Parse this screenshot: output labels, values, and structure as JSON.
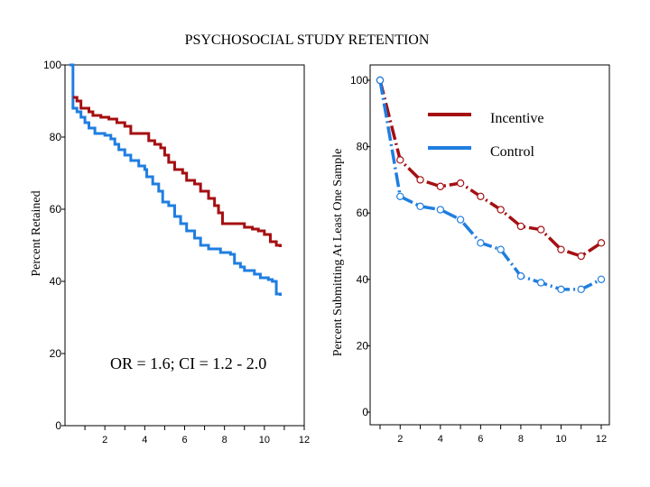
{
  "title": "PSYCHOSOCIAL STUDY RETENTION",
  "colors": {
    "incentive": "#a50f12",
    "control": "#1f7ee0"
  },
  "chart_data": [
    {
      "type": "line",
      "step": true,
      "ylabel": "Percent Retained",
      "xlim": [
        0,
        12
      ],
      "ylim": [
        0,
        100
      ],
      "xticks": [
        1,
        2,
        3,
        4,
        5,
        6,
        7,
        8,
        9,
        10,
        11,
        12
      ],
      "xtick_labels": [
        "2",
        "4",
        "6",
        "8",
        "10",
        "12"
      ],
      "xtick_label_values": [
        2,
        4,
        6,
        8,
        10,
        12
      ],
      "yticks": [
        0,
        20,
        40,
        60,
        80,
        100
      ],
      "ytick_labels": [
        "0",
        "20",
        "40",
        "60",
        "80",
        "100"
      ],
      "annotation": "OR = 1.6; CI = 1.2 - 2.0",
      "grid": false,
      "series": [
        {
          "key": "incentive",
          "x": [
            0.4,
            0.6,
            0.8,
            1.2,
            1.4,
            1.8,
            2.2,
            2.6,
            3.0,
            3.3,
            4.0,
            4.2,
            4.5,
            4.8,
            5.0,
            5.2,
            5.5,
            5.9,
            6.1,
            6.5,
            6.8,
            7.2,
            7.5,
            7.7,
            7.9,
            8.8,
            9.0,
            9.4,
            9.7,
            10.0,
            10.3,
            10.6,
            10.8
          ],
          "y": [
            91,
            90,
            88,
            87,
            86,
            85.5,
            85,
            84,
            83,
            81,
            81,
            79,
            78,
            77,
            75,
            73,
            71,
            70,
            68,
            67,
            65,
            63,
            61,
            59,
            56,
            56,
            55,
            54.5,
            54,
            53,
            51,
            50,
            49.5
          ]
        },
        {
          "key": "control",
          "x": [
            0,
            0.4,
            0.6,
            0.8,
            1.0,
            1.2,
            1.5,
            2.0,
            2.3,
            2.5,
            2.7,
            3.0,
            3.3,
            3.7,
            4.0,
            4.1,
            4.4,
            4.7,
            4.9,
            5.2,
            5.5,
            5.8,
            6.1,
            6.5,
            6.8,
            7.2,
            7.8,
            8.3,
            8.5,
            8.8,
            9.0,
            9.5,
            9.8,
            10.2,
            10.4,
            10.6,
            10.8
          ],
          "y": [
            100,
            88,
            87,
            85.5,
            84,
            82.5,
            81,
            80.5,
            79.5,
            78,
            76.5,
            75,
            73.5,
            72,
            71,
            69,
            67,
            65,
            62,
            61,
            58,
            56,
            54,
            52,
            50,
            49,
            48,
            47.5,
            45,
            44,
            43,
            42,
            41,
            40.5,
            40,
            36.5,
            36
          ]
        }
      ]
    },
    {
      "type": "line",
      "ylabel": "Percent Submitting At Least One Sample",
      "xlim": [
        0.5,
        12.5
      ],
      "ylim": [
        0,
        100
      ],
      "xticks": [
        1,
        2,
        3,
        4,
        5,
        6,
        7,
        8,
        9,
        10,
        11,
        12
      ],
      "xtick_labels": [
        "2",
        "4",
        "6",
        "8",
        "10",
        "12"
      ],
      "xtick_label_values": [
        2,
        4,
        6,
        8,
        10,
        12
      ],
      "yticks": [
        0,
        20,
        40,
        60,
        80,
        100
      ],
      "ytick_labels": [
        "0",
        "20",
        "40",
        "60",
        "80",
        "100"
      ],
      "legend": {
        "placement": "top-right",
        "entries": [
          "Incentive",
          "Control"
        ]
      },
      "grid": false,
      "series": [
        {
          "key": "incentive",
          "name": "Incentive",
          "x": [
            1,
            2,
            3,
            4,
            5,
            6,
            7,
            8,
            9,
            10,
            11,
            12
          ],
          "y": [
            100,
            76,
            70,
            68,
            69,
            65,
            61,
            56,
            55,
            49,
            47,
            51
          ]
        },
        {
          "key": "control",
          "name": "Control",
          "x": [
            1,
            2,
            3,
            4,
            5,
            6,
            7,
            8,
            9,
            10,
            11,
            12
          ],
          "y": [
            100,
            65,
            62,
            61,
            58,
            51,
            49,
            41,
            39,
            37,
            37,
            40
          ]
        }
      ]
    }
  ]
}
